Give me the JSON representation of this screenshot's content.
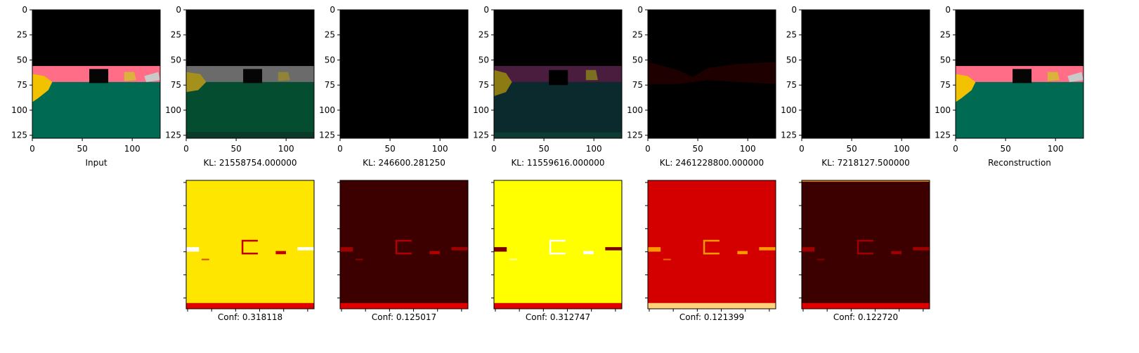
{
  "colors": {
    "background": "#000000",
    "pink_band": "#ff6d87",
    "gray_band": "#6b6b6b",
    "purple_band": "#4a1d3f",
    "green_floor": "#006a52",
    "dark_green_floor": "#044d30",
    "teal_floor": "#0b2a2e",
    "dark_red_band": "#1e0000",
    "yellow_object": "#f2c200",
    "heat_yellow": "#ffe600",
    "heat_bright_yellow": "#ffff00",
    "heat_red": "#d40000",
    "heat_dark": "#3d0000",
    "heat_strip": "#e00000"
  },
  "chart_data": [
    {
      "type": "image",
      "panel": "input",
      "xlabel": "Input",
      "xlim": [
        0,
        128
      ],
      "ylim": [
        128,
        0
      ],
      "xticks": [
        "0",
        "50",
        "100"
      ],
      "yticks": [
        "0",
        "25",
        "50",
        "75",
        "100",
        "125"
      ]
    },
    {
      "type": "image",
      "panel": "latent-1",
      "xlabel": "KL: 21558754.000000",
      "xlim": [
        0,
        128
      ],
      "ylim": [
        128,
        0
      ],
      "xticks": [
        "0",
        "50",
        "100"
      ],
      "yticks": [
        "0",
        "25",
        "50",
        "75",
        "100",
        "125"
      ]
    },
    {
      "type": "image",
      "panel": "latent-2",
      "xlabel": "KL: 246600.281250",
      "xlim": [
        0,
        128
      ],
      "ylim": [
        128,
        0
      ],
      "xticks": [
        "0",
        "50",
        "100"
      ],
      "yticks": [
        "0",
        "25",
        "50",
        "75",
        "100",
        "125"
      ]
    },
    {
      "type": "image",
      "panel": "latent-3",
      "xlabel": "KL: 11559616.000000",
      "xlim": [
        0,
        128
      ],
      "ylim": [
        128,
        0
      ],
      "xticks": [
        "0",
        "50",
        "100"
      ],
      "yticks": [
        "0",
        "25",
        "50",
        "75",
        "100",
        "125"
      ]
    },
    {
      "type": "image",
      "panel": "latent-4",
      "xlabel": "KL: 2461228800.000000",
      "xlim": [
        0,
        128
      ],
      "ylim": [
        128,
        0
      ],
      "xticks": [
        "0",
        "50",
        "100"
      ],
      "yticks": [
        "0",
        "25",
        "50",
        "75",
        "100",
        "125"
      ]
    },
    {
      "type": "image",
      "panel": "latent-5",
      "xlabel": "KL: 7218127.500000",
      "xlim": [
        0,
        128
      ],
      "ylim": [
        128,
        0
      ],
      "xticks": [
        "0",
        "50",
        "100"
      ],
      "yticks": [
        "0",
        "25",
        "50",
        "75",
        "100",
        "125"
      ]
    },
    {
      "type": "image",
      "panel": "reconstruction",
      "xlabel": "Reconstruction",
      "xlim": [
        0,
        128
      ],
      "ylim": [
        128,
        0
      ],
      "xticks": [
        "0",
        "50",
        "100"
      ],
      "yticks": [
        "0",
        "25",
        "50",
        "75",
        "100",
        "125"
      ]
    },
    {
      "type": "heatmap",
      "panel": "confidence-1",
      "xlabel": "Conf: 0.318118"
    },
    {
      "type": "heatmap",
      "panel": "confidence-2",
      "xlabel": "Conf: 0.125017"
    },
    {
      "type": "heatmap",
      "panel": "confidence-3",
      "xlabel": "Conf: 0.312747"
    },
    {
      "type": "heatmap",
      "panel": "confidence-4",
      "xlabel": "Conf: 0.121399"
    },
    {
      "type": "heatmap",
      "panel": "confidence-5",
      "xlabel": "Conf: 0.122720"
    }
  ]
}
